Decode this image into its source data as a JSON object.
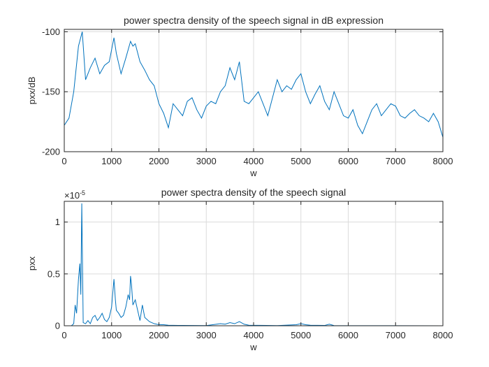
{
  "chart_data": [
    {
      "type": "line",
      "title": "power spectra density of the speech signal in dB expression",
      "xlabel": "w",
      "ylabel": "pxx/dB",
      "xlim": [
        0,
        8000
      ],
      "ylim": [
        -200,
        -98
      ],
      "xticks": [
        0,
        1000,
        2000,
        3000,
        4000,
        5000,
        6000,
        7000,
        8000
      ],
      "xtick_labels": [
        "0",
        "1000",
        "2000",
        "3000",
        "4000",
        "5000",
        "6000",
        "7000",
        "8000"
      ],
      "yticks": [
        -200,
        -150,
        -100
      ],
      "ytick_labels": [
        "-200",
        "-150",
        "-100"
      ],
      "grid": true,
      "color": "#0072BD",
      "series": [
        {
          "x": [
            0,
            100,
            200,
            300,
            380,
            450,
            550,
            650,
            750,
            850,
            950,
            1050,
            1100,
            1200,
            1300,
            1400,
            1450,
            1500,
            1600,
            1700,
            1800,
            1900,
            2000,
            2100,
            2200,
            2300,
            2400,
            2500,
            2600,
            2700,
            2800,
            2900,
            3000,
            3100,
            3200,
            3300,
            3400,
            3500,
            3600,
            3700,
            3800,
            3900,
            4000,
            4100,
            4200,
            4300,
            4400,
            4500,
            4600,
            4700,
            4800,
            4900,
            5000,
            5100,
            5200,
            5300,
            5400,
            5500,
            5600,
            5700,
            5800,
            5900,
            6000,
            6100,
            6200,
            6300,
            6400,
            6500,
            6600,
            6700,
            6800,
            6900,
            7000,
            7100,
            7200,
            7300,
            7400,
            7500,
            7600,
            7700,
            7800,
            7900,
            8000
          ],
          "values": [
            -178,
            -172,
            -150,
            -112,
            -100,
            -140,
            -130,
            -122,
            -135,
            -128,
            -125,
            -105,
            -118,
            -135,
            -122,
            -108,
            -112,
            -110,
            -125,
            -132,
            -140,
            -145,
            -160,
            -168,
            -180,
            -160,
            -165,
            -170,
            -158,
            -155,
            -165,
            -172,
            -162,
            -158,
            -160,
            -150,
            -145,
            -130,
            -140,
            -125,
            -158,
            -160,
            -155,
            -150,
            -160,
            -170,
            -155,
            -140,
            -150,
            -145,
            -148,
            -140,
            -135,
            -150,
            -160,
            -152,
            -145,
            -158,
            -165,
            -150,
            -160,
            -170,
            -172,
            -165,
            -178,
            -185,
            -175,
            -165,
            -160,
            -170,
            -165,
            -160,
            -162,
            -170,
            -172,
            -168,
            -165,
            -170,
            -172,
            -175,
            -168,
            -175,
            -188
          ]
        }
      ]
    },
    {
      "type": "line",
      "title": "power spectra density of the speech signal",
      "xlabel": "w",
      "ylabel": "pxx",
      "exponent_label": "×10",
      "exponent_power": "-5",
      "xlim": [
        0,
        8000
      ],
      "ylim": [
        0,
        1.2
      ],
      "xticks": [
        0,
        1000,
        2000,
        3000,
        4000,
        5000,
        6000,
        7000,
        8000
      ],
      "xtick_labels": [
        "0",
        "1000",
        "2000",
        "3000",
        "4000",
        "5000",
        "6000",
        "7000",
        "8000"
      ],
      "yticks": [
        0,
        0.5,
        1
      ],
      "ytick_labels": [
        "0",
        "0.5",
        "1"
      ],
      "grid": true,
      "color": "#0072BD",
      "series": [
        {
          "x": [
            0,
            150,
            200,
            230,
            260,
            300,
            330,
            350,
            370,
            380,
            400,
            450,
            500,
            550,
            600,
            650,
            700,
            750,
            800,
            850,
            900,
            950,
            1000,
            1050,
            1080,
            1100,
            1150,
            1200,
            1250,
            1300,
            1350,
            1380,
            1400,
            1420,
            1450,
            1500,
            1550,
            1600,
            1650,
            1700,
            1800,
            1900,
            2000,
            2100,
            2200,
            2500,
            3000,
            3300,
            3400,
            3500,
            3600,
            3700,
            3800,
            3900,
            4500,
            4900,
            5000,
            5100,
            5200,
            5500,
            5600,
            5700,
            6000,
            7000,
            8000
          ],
          "values": [
            0,
            0,
            0.02,
            0.2,
            0.12,
            0.45,
            0.6,
            0.3,
            1.18,
            0.8,
            0.03,
            0.02,
            0.05,
            0.02,
            0.08,
            0.1,
            0.05,
            0.08,
            0.12,
            0.06,
            0.04,
            0.08,
            0.18,
            0.45,
            0.25,
            0.15,
            0.12,
            0.08,
            0.1,
            0.18,
            0.3,
            0.25,
            0.48,
            0.4,
            0.2,
            0.25,
            0.15,
            0.05,
            0.2,
            0.08,
            0.04,
            0.02,
            0.01,
            0.01,
            0.005,
            0.003,
            0.002,
            0.02,
            0.015,
            0.03,
            0.02,
            0.04,
            0.015,
            0.005,
            0.002,
            0.01,
            0.02,
            0.01,
            0.005,
            0.003,
            0.015,
            0.002,
            0.001,
            0.001,
            0
          ]
        }
      ]
    }
  ]
}
